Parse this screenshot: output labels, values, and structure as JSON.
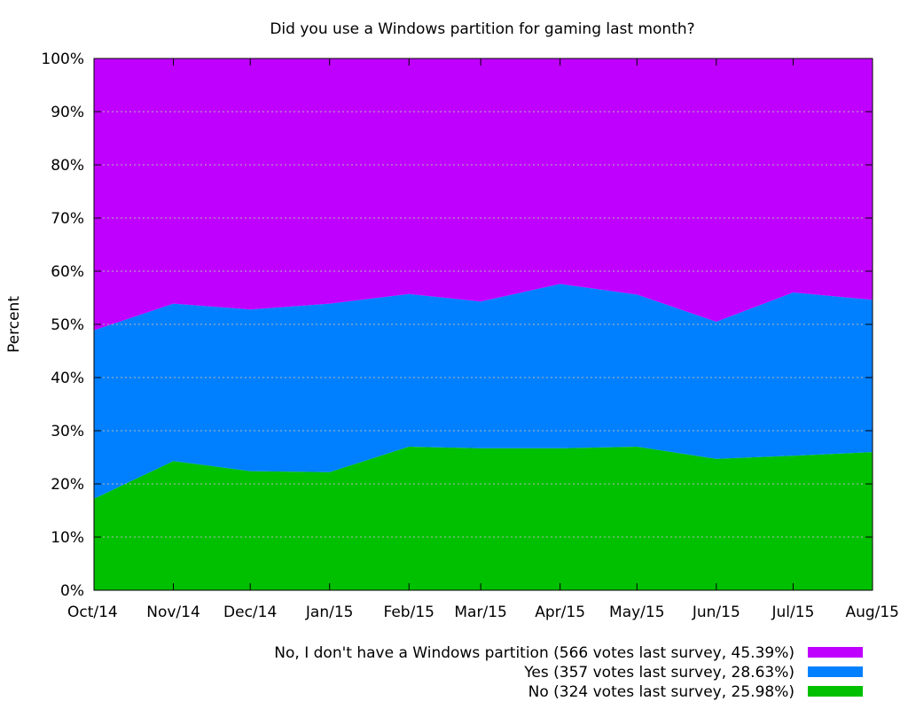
{
  "chart_data": {
    "type": "area",
    "stacked": true,
    "title": "Did you use a Windows partition for gaming last month?",
    "xlabel": "",
    "ylabel": "Percent",
    "ylim": [
      0,
      100
    ],
    "yticks": [
      0,
      10,
      20,
      30,
      40,
      50,
      60,
      70,
      80,
      90,
      100
    ],
    "ytick_labels": [
      "0%",
      "10%",
      "20%",
      "30%",
      "40%",
      "50%",
      "60%",
      "70%",
      "80%",
      "90%",
      "100%"
    ],
    "categories": [
      "Oct/14",
      "Nov/14",
      "Dec/14",
      "Jan/15",
      "Feb/15",
      "Mar/15",
      "Apr/15",
      "May/15",
      "Jun/15",
      "Jul/15",
      "Aug/15"
    ],
    "x_days": [
      0,
      31,
      61,
      92,
      123,
      151,
      182,
      212,
      243,
      273,
      304
    ],
    "grid": true,
    "legend_position": "bottom-right",
    "series": [
      {
        "name": "No",
        "legend_label": "No (324 votes last survey, 25.98%)",
        "color": "#00c000",
        "values": [
          17.2,
          24.3,
          22.4,
          22.2,
          27.0,
          26.7,
          26.7,
          27.0,
          24.7,
          25.3,
          25.98
        ]
      },
      {
        "name": "Yes",
        "legend_label": "Yes (357 votes last survey, 28.63%)",
        "color": "#0080ff",
        "values": [
          31.7,
          29.6,
          30.4,
          31.7,
          28.7,
          27.6,
          30.9,
          28.6,
          25.8,
          30.7,
          28.63
        ]
      },
      {
        "name": "No, I don't have a Windows partition",
        "legend_label": "No, I don't have a Windows partition (566 votes last survey, 45.39%)",
        "color": "#c000ff",
        "values": [
          51.1,
          46.1,
          47.2,
          46.1,
          44.3,
          45.7,
          42.4,
          44.4,
          49.5,
          44.0,
          45.39
        ]
      }
    ]
  }
}
